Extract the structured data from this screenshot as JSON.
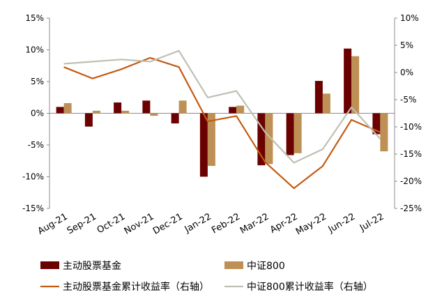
{
  "chart_data": {
    "type": "bar",
    "categories": [
      "Aug-21",
      "Sep-21",
      "Oct-21",
      "Nov-21",
      "Dec-21",
      "Jan-22",
      "Feb-22",
      "Mar-22",
      "Apr-22",
      "May-22",
      "Jun-22",
      "Jul-22"
    ],
    "series": [
      {
        "name": "主动股票基金",
        "kind": "bar",
        "axis": "left",
        "color": "#6b0000",
        "values": [
          1.0,
          -2.1,
          1.7,
          2.0,
          -1.6,
          -10.0,
          1.0,
          -8.2,
          -6.6,
          5.1,
          10.2,
          -3.3
        ]
      },
      {
        "name": "中证800",
        "kind": "bar",
        "axis": "left",
        "color": "#bf9055",
        "values": [
          1.6,
          0.4,
          0.4,
          -0.4,
          2.0,
          -8.3,
          1.2,
          -8.0,
          -6.3,
          3.1,
          9.0,
          -6.0
        ]
      },
      {
        "name": "主动股票基金累计收益率（右轴）",
        "kind": "line",
        "axis": "right",
        "color": "#c55a11",
        "values": [
          1.0,
          -1.1,
          0.6,
          2.7,
          1.0,
          -9.0,
          -8.0,
          -16.5,
          -21.3,
          -17.2,
          -8.7,
          -11.0
        ]
      },
      {
        "name": "中证800累计收益率（右轴）",
        "kind": "line",
        "axis": "right",
        "color": "#bfbfb4",
        "values": [
          1.6,
          2.0,
          2.4,
          2.0,
          4.0,
          -4.6,
          -3.4,
          -11.0,
          -16.6,
          -14.1,
          -6.4,
          -12.2
        ]
      }
    ],
    "y_left": {
      "min": -15,
      "max": 15,
      "step": 5,
      "ticks": [
        "15%",
        "10%",
        "5%",
        "0%",
        "-5%",
        "-10%",
        "-15%"
      ]
    },
    "y_right": {
      "min": -25,
      "max": 10,
      "step": 5,
      "ticks": [
        "10%",
        "5%",
        "0%",
        "-5%",
        "-10%",
        "-15%",
        "-20%",
        "-25%"
      ]
    },
    "grid": false,
    "legend_position": "bottom"
  }
}
